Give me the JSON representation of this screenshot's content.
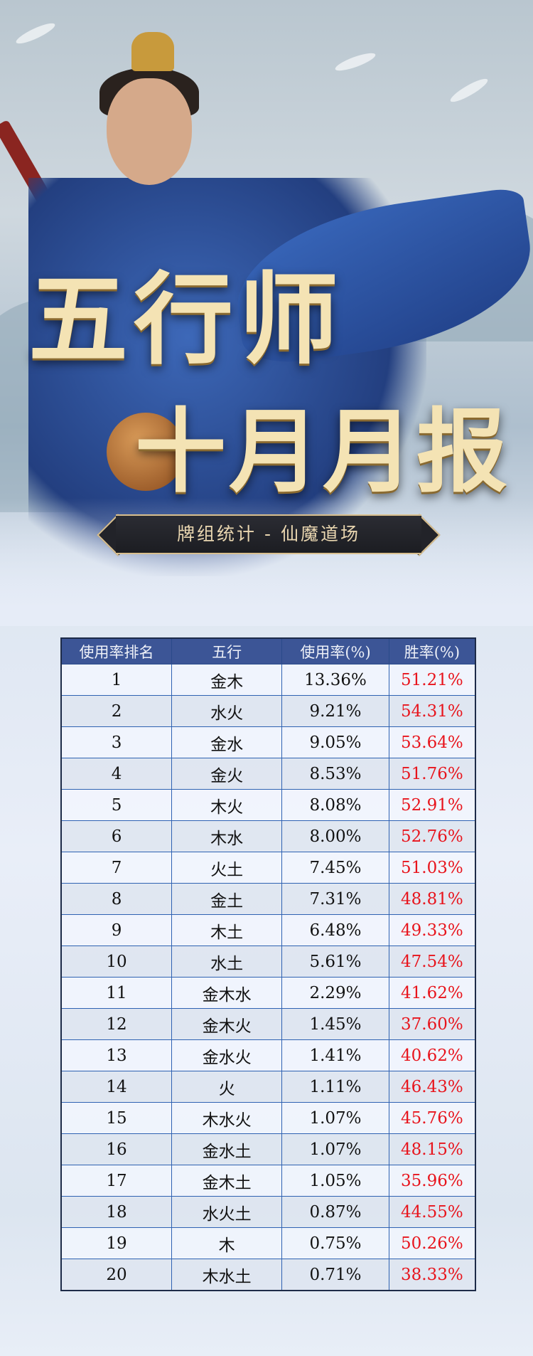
{
  "hero": {
    "title_line1": "五行师",
    "title_line2": "十月月报",
    "subtitle": "牌组统计 - 仙魔道场"
  },
  "colors": {
    "header_bg": "#3c5596",
    "win_rate_text": "#e8141c",
    "border": "#2f62b2"
  },
  "table": {
    "headers": [
      "使用率排名",
      "五行",
      "使用率(%)",
      "胜率(%)"
    ],
    "rows": [
      [
        "1",
        "金木",
        "13.36%",
        "51.21%"
      ],
      [
        "2",
        "水火",
        "9.21%",
        "54.31%"
      ],
      [
        "3",
        "金水",
        "9.05%",
        "53.64%"
      ],
      [
        "4",
        "金火",
        "8.53%",
        "51.76%"
      ],
      [
        "5",
        "木火",
        "8.08%",
        "52.91%"
      ],
      [
        "6",
        "木水",
        "8.00%",
        "52.76%"
      ],
      [
        "7",
        "火土",
        "7.45%",
        "51.03%"
      ],
      [
        "8",
        "金土",
        "7.31%",
        "48.81%"
      ],
      [
        "9",
        "木土",
        "6.48%",
        "49.33%"
      ],
      [
        "10",
        "水土",
        "5.61%",
        "47.54%"
      ],
      [
        "11",
        "金木水",
        "2.29%",
        "41.62%"
      ],
      [
        "12",
        "金木火",
        "1.45%",
        "37.60%"
      ],
      [
        "13",
        "金水火",
        "1.41%",
        "40.62%"
      ],
      [
        "14",
        "火",
        "1.11%",
        "46.43%"
      ],
      [
        "15",
        "木水火",
        "1.07%",
        "45.76%"
      ],
      [
        "16",
        "金水土",
        "1.07%",
        "48.15%"
      ],
      [
        "17",
        "金木土",
        "1.05%",
        "35.96%"
      ],
      [
        "18",
        "水火土",
        "0.87%",
        "44.55%"
      ],
      [
        "19",
        "木",
        "0.75%",
        "50.26%"
      ],
      [
        "20",
        "木水土",
        "0.71%",
        "38.33%"
      ]
    ]
  }
}
